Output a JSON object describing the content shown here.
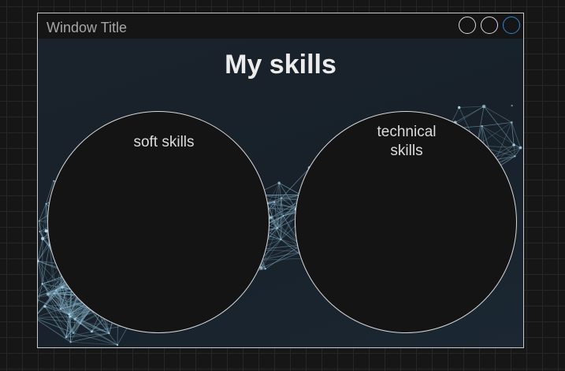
{
  "window": {
    "title": "Window Title",
    "controls": [
      {
        "name": "minimize",
        "color": "#d9d9d9"
      },
      {
        "name": "maximize",
        "color": "#d9d9d9"
      },
      {
        "name": "close",
        "color": "#2f86d6"
      }
    ]
  },
  "page": {
    "heading": "My skills"
  },
  "skills": [
    {
      "label": "soft skills"
    },
    {
      "label": "technical\nskills"
    }
  ],
  "colors": {
    "background": "#161616",
    "content_background": "#1a232c",
    "circle_fill": "#141414",
    "accent": "#2f86d6"
  }
}
